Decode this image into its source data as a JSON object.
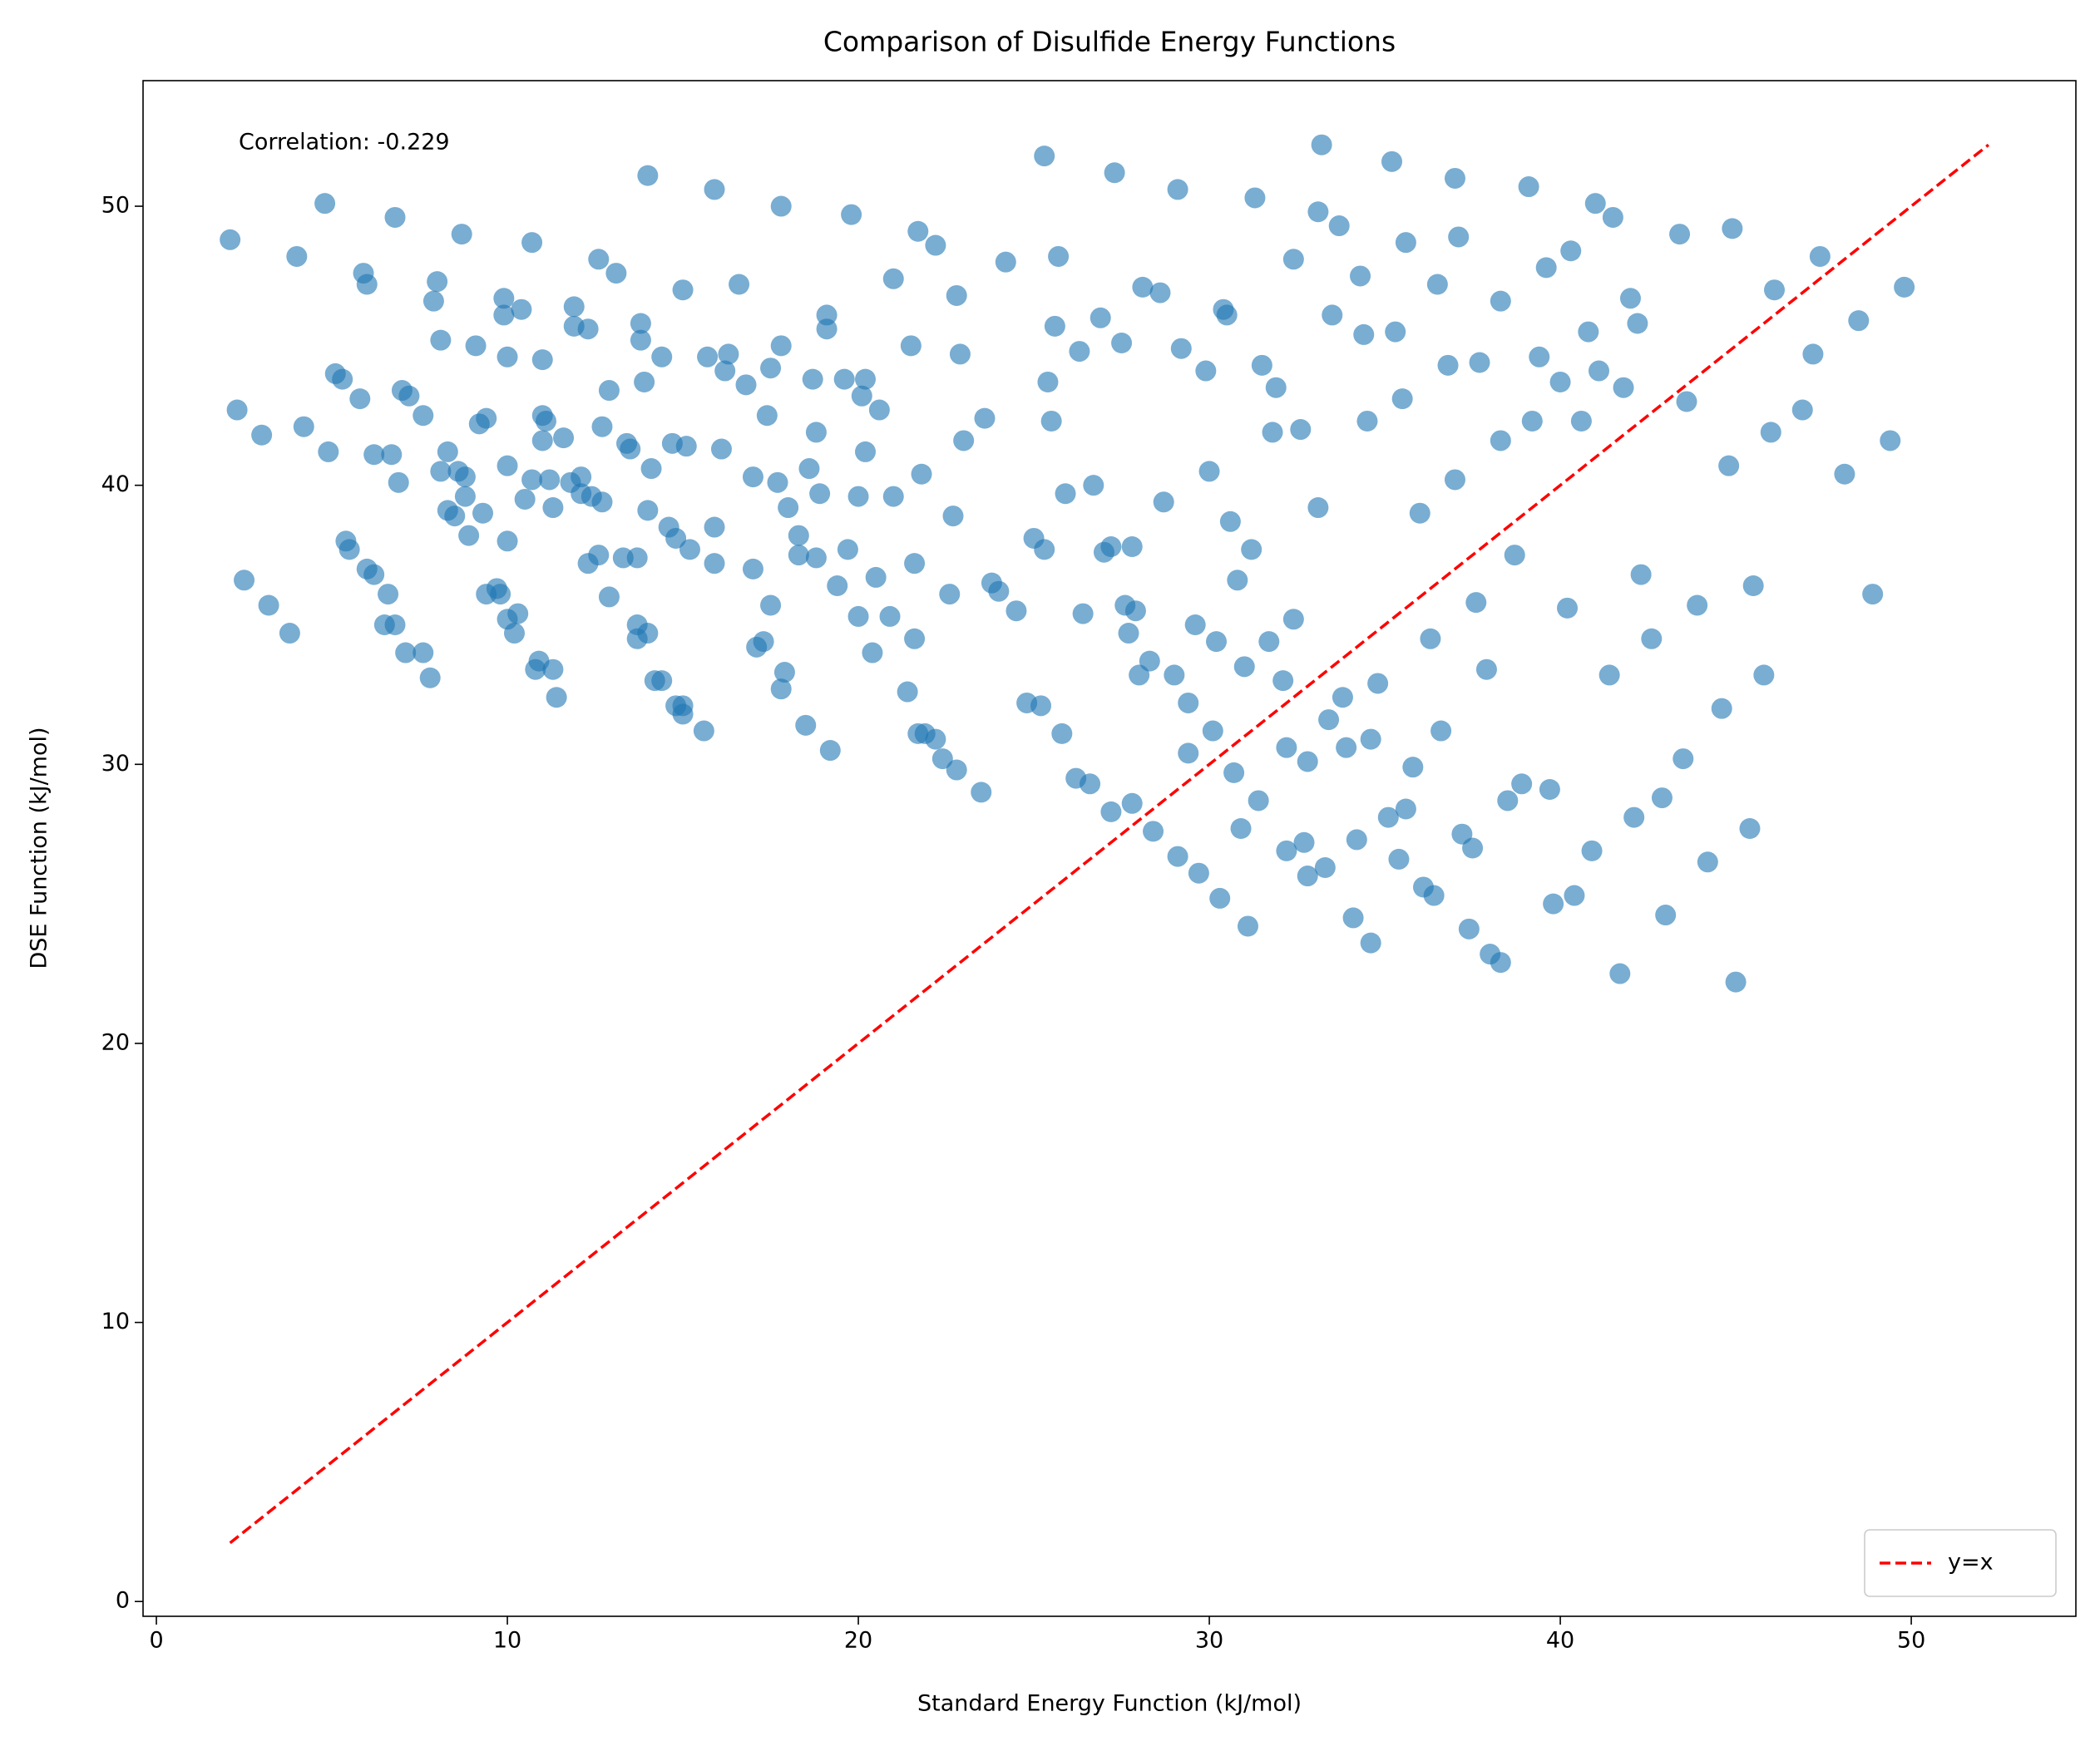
{
  "chart_data": {
    "type": "scatter",
    "title": "Comparison of Disulfide Energy Functions",
    "xlabel": "Standard Energy Function (kJ/mol)",
    "ylabel": "DSE Function (kJ/mol)",
    "annotation": "Correlation: -0.229",
    "color": "#1f77b4",
    "alpha": 0.6,
    "xlim": [
      -0.38,
      54.69
    ],
    "ylim": [
      -0.53,
      54.5
    ],
    "xticks": [
      0,
      10,
      20,
      30,
      40,
      50
    ],
    "yticks": [
      0,
      10,
      20,
      30,
      40,
      50
    ],
    "legend": "lower right",
    "series": [
      {
        "name": "y=x",
        "type": "line",
        "color": "red",
        "dashed": true,
        "x": [
          2.1,
          52.2
        ],
        "values": [
          2.1,
          52.2
        ]
      }
    ],
    "points": [
      [
        2.1,
        48.8
      ],
      [
        2.3,
        42.7
      ],
      [
        2.5,
        36.6
      ],
      [
        3,
        41.8
      ],
      [
        3.2,
        35.7
      ],
      [
        3.8,
        34.7
      ],
      [
        4,
        48.2
      ],
      [
        4.2,
        42.1
      ],
      [
        4.8,
        50.1
      ],
      [
        4.9,
        41.2
      ],
      [
        5.1,
        44
      ],
      [
        5.3,
        43.8
      ],
      [
        5.4,
        38
      ],
      [
        5.5,
        37.7
      ],
      [
        5.8,
        43.1
      ],
      [
        5.9,
        47.6
      ],
      [
        6,
        47.2
      ],
      [
        6,
        37
      ],
      [
        6.2,
        36.8
      ],
      [
        6.2,
        41.1
      ],
      [
        6.5,
        35
      ],
      [
        6.6,
        36.1
      ],
      [
        6.7,
        41.1
      ],
      [
        6.8,
        49.6
      ],
      [
        6.8,
        35
      ],
      [
        6.9,
        40.1
      ],
      [
        7,
        43.4
      ],
      [
        7.1,
        34
      ],
      [
        7.2,
        43.2
      ],
      [
        7.6,
        34
      ],
      [
        7.6,
        42.5
      ],
      [
        7.8,
        33.1
      ],
      [
        7.9,
        46.6
      ],
      [
        8,
        47.3
      ],
      [
        8.1,
        45.2
      ],
      [
        8.1,
        40.5
      ],
      [
        8.3,
        41.2
      ],
      [
        8.3,
        39.1
      ],
      [
        8.5,
        38.9
      ],
      [
        8.6,
        40.5
      ],
      [
        8.7,
        49
      ],
      [
        8.8,
        39.6
      ],
      [
        8.8,
        40.3
      ],
      [
        8.9,
        38.2
      ],
      [
        9.1,
        45
      ],
      [
        9.2,
        42.2
      ],
      [
        9.3,
        39
      ],
      [
        9.4,
        42.4
      ],
      [
        9.4,
        36.1
      ],
      [
        9.7,
        36.3
      ],
      [
        9.8,
        36.1
      ],
      [
        9.9,
        46.1
      ],
      [
        9.9,
        46.7
      ],
      [
        10,
        44.6
      ],
      [
        10,
        40.7
      ],
      [
        10,
        38
      ],
      [
        10,
        35.2
      ],
      [
        10.2,
        34.7
      ],
      [
        10.3,
        35.4
      ],
      [
        10.4,
        46.3
      ],
      [
        10.5,
        39.5
      ],
      [
        10.7,
        40.2
      ],
      [
        10.7,
        48.7
      ],
      [
        10.8,
        33.4
      ],
      [
        10.9,
        33.7
      ],
      [
        11,
        42.5
      ],
      [
        11,
        44.5
      ],
      [
        11,
        41.6
      ],
      [
        11.1,
        42.3
      ],
      [
        11.2,
        40.2
      ],
      [
        11.3,
        33.4
      ],
      [
        11.3,
        39.2
      ],
      [
        11.4,
        32.4
      ],
      [
        11.6,
        41.7
      ],
      [
        11.8,
        40.1
      ],
      [
        11.9,
        46.4
      ],
      [
        11.9,
        45.7
      ],
      [
        12.1,
        39.7
      ],
      [
        12.1,
        40.3
      ],
      [
        12.3,
        37.2
      ],
      [
        12.3,
        45.6
      ],
      [
        12.4,
        39.6
      ],
      [
        12.6,
        37.5
      ],
      [
        12.6,
        48.1
      ],
      [
        12.7,
        39.4
      ],
      [
        12.7,
        42.1
      ],
      [
        12.9,
        43.4
      ],
      [
        12.9,
        36
      ],
      [
        13.1,
        47.6
      ],
      [
        13.3,
        37.4
      ],
      [
        13.4,
        41.5
      ],
      [
        13.5,
        41.3
      ],
      [
        13.7,
        37.4
      ],
      [
        13.7,
        35
      ],
      [
        13.7,
        34.5
      ],
      [
        13.8,
        45.2
      ],
      [
        13.8,
        45.8
      ],
      [
        13.9,
        43.7
      ],
      [
        14,
        39.1
      ],
      [
        14,
        51.1
      ],
      [
        14,
        34.7
      ],
      [
        14.1,
        40.6
      ],
      [
        14.2,
        33
      ],
      [
        14.4,
        44.6
      ],
      [
        14.4,
        33
      ],
      [
        14.6,
        38.5
      ],
      [
        14.7,
        41.5
      ],
      [
        14.8,
        38.1
      ],
      [
        14.8,
        32.1
      ],
      [
        15,
        32.1
      ],
      [
        15,
        31.8
      ],
      [
        15,
        47
      ],
      [
        15.1,
        41.4
      ],
      [
        15.2,
        37.7
      ],
      [
        15.6,
        31.2
      ],
      [
        15.7,
        44.6
      ],
      [
        15.9,
        38.5
      ],
      [
        15.9,
        50.6
      ],
      [
        15.9,
        37.2
      ],
      [
        16.1,
        41.3
      ],
      [
        16.2,
        44.1
      ],
      [
        16.3,
        44.7
      ],
      [
        16.6,
        47.2
      ],
      [
        16.8,
        43.6
      ],
      [
        17,
        40.3
      ],
      [
        17,
        37
      ],
      [
        17.1,
        34.2
      ],
      [
        17.3,
        34.4
      ],
      [
        17.4,
        42.5
      ],
      [
        17.5,
        44.2
      ],
      [
        17.5,
        35.7
      ],
      [
        17.7,
        40.1
      ],
      [
        17.8,
        45
      ],
      [
        17.8,
        50
      ],
      [
        17.8,
        32.7
      ],
      [
        17.9,
        33.3
      ],
      [
        18,
        39.2
      ],
      [
        18.3,
        38.2
      ],
      [
        18.3,
        37.5
      ],
      [
        18.5,
        31.4
      ],
      [
        18.6,
        40.6
      ],
      [
        18.7,
        43.8
      ],
      [
        18.8,
        41.9
      ],
      [
        18.8,
        37.4
      ],
      [
        18.9,
        39.7
      ],
      [
        19.1,
        45.6
      ],
      [
        19.1,
        46.1
      ],
      [
        19.2,
        30.5
      ],
      [
        19.4,
        36.4
      ],
      [
        19.6,
        43.8
      ],
      [
        19.7,
        37.7
      ],
      [
        19.8,
        49.7
      ],
      [
        20,
        39.6
      ],
      [
        20,
        35.3
      ],
      [
        20.1,
        43.2
      ],
      [
        20.2,
        43.8
      ],
      [
        20.2,
        41.2
      ],
      [
        20.4,
        34
      ],
      [
        20.5,
        36.7
      ],
      [
        20.6,
        42.7
      ],
      [
        20.9,
        35.3
      ],
      [
        21,
        39.6
      ],
      [
        21,
        47.4
      ],
      [
        21.4,
        32.6
      ],
      [
        21.5,
        45
      ],
      [
        21.6,
        37.2
      ],
      [
        21.6,
        34.5
      ],
      [
        21.7,
        31.1
      ],
      [
        21.7,
        49.1
      ],
      [
        21.8,
        40.4
      ],
      [
        21.9,
        31.1
      ],
      [
        22.2,
        30.9
      ],
      [
        22.2,
        48.6
      ],
      [
        22.4,
        30.2
      ],
      [
        22.6,
        36.1
      ],
      [
        22.7,
        38.9
      ],
      [
        22.8,
        46.8
      ],
      [
        22.9,
        44.7
      ],
      [
        22.8,
        29.8
      ],
      [
        23,
        41.6
      ],
      [
        23.5,
        29
      ],
      [
        23.6,
        42.4
      ],
      [
        23.8,
        36.5
      ],
      [
        24,
        36.2
      ],
      [
        24.2,
        48
      ],
      [
        24.5,
        35.5
      ],
      [
        24.8,
        32.2
      ],
      [
        25,
        38.1
      ],
      [
        25.2,
        32.1
      ],
      [
        25.3,
        37.7
      ],
      [
        25.3,
        51.8
      ],
      [
        25.4,
        43.7
      ],
      [
        25.5,
        42.3
      ],
      [
        25.6,
        45.7
      ],
      [
        25.7,
        48.2
      ],
      [
        25.8,
        31.1
      ],
      [
        25.9,
        39.7
      ],
      [
        26.2,
        29.5
      ],
      [
        26.3,
        44.8
      ],
      [
        26.4,
        35.4
      ],
      [
        26.6,
        29.3
      ],
      [
        26.7,
        40
      ],
      [
        26.9,
        46
      ],
      [
        27,
        37.6
      ],
      [
        27.2,
        28.3
      ],
      [
        27.2,
        37.8
      ],
      [
        27.3,
        51.2
      ],
      [
        27.5,
        45.1
      ],
      [
        27.6,
        35.7
      ],
      [
        27.7,
        34.7
      ],
      [
        27.8,
        37.8
      ],
      [
        27.8,
        28.6
      ],
      [
        27.9,
        35.5
      ],
      [
        28,
        33.2
      ],
      [
        28.1,
        47.1
      ],
      [
        28.3,
        33.7
      ],
      [
        28.4,
        27.6
      ],
      [
        28.6,
        46.9
      ],
      [
        28.7,
        39.4
      ],
      [
        29,
        33.2
      ],
      [
        29.1,
        26.7
      ],
      [
        29.1,
        50.6
      ],
      [
        29.2,
        44.9
      ],
      [
        29.4,
        32.2
      ],
      [
        29.4,
        30.4
      ],
      [
        29.6,
        35
      ],
      [
        29.7,
        26.1
      ],
      [
        29.9,
        44.1
      ],
      [
        30,
        40.5
      ],
      [
        30.1,
        31.2
      ],
      [
        30.2,
        34.4
      ],
      [
        30.3,
        25.2
      ],
      [
        30.4,
        46.3
      ],
      [
        30.5,
        46.1
      ],
      [
        30.6,
        38.7
      ],
      [
        30.7,
        29.7
      ],
      [
        30.8,
        36.6
      ],
      [
        30.9,
        27.7
      ],
      [
        31,
        33.5
      ],
      [
        31.1,
        24.2
      ],
      [
        31.2,
        37.7
      ],
      [
        31.3,
        50.3
      ],
      [
        31.4,
        28.7
      ],
      [
        31.5,
        44.3
      ],
      [
        31.7,
        34.4
      ],
      [
        31.8,
        41.9
      ],
      [
        31.9,
        43.5
      ],
      [
        32.1,
        33
      ],
      [
        32.2,
        30.6
      ],
      [
        32.2,
        26.9
      ],
      [
        32.4,
        48.1
      ],
      [
        32.4,
        35.2
      ],
      [
        32.6,
        42
      ],
      [
        32.7,
        27.2
      ],
      [
        32.8,
        26
      ],
      [
        32.8,
        30.1
      ],
      [
        33.1,
        39.2
      ],
      [
        33.1,
        49.8
      ],
      [
        33.2,
        52.2
      ],
      [
        33.3,
        26.3
      ],
      [
        33.4,
        31.6
      ],
      [
        33.5,
        46.1
      ],
      [
        33.7,
        49.3
      ],
      [
        33.8,
        32.4
      ],
      [
        33.9,
        30.6
      ],
      [
        34.1,
        24.5
      ],
      [
        34.2,
        27.3
      ],
      [
        34.3,
        47.5
      ],
      [
        34.4,
        45.4
      ],
      [
        34.5,
        42.3
      ],
      [
        34.6,
        23.6
      ],
      [
        34.6,
        30.9
      ],
      [
        34.8,
        32.9
      ],
      [
        35.1,
        28.1
      ],
      [
        35.2,
        51.6
      ],
      [
        35.3,
        45.5
      ],
      [
        35.4,
        26.6
      ],
      [
        35.5,
        43.1
      ],
      [
        35.6,
        48.7
      ],
      [
        35.6,
        28.4
      ],
      [
        35.8,
        29.9
      ],
      [
        36,
        39
      ],
      [
        36.1,
        25.6
      ],
      [
        36.3,
        34.5
      ],
      [
        36.4,
        25.3
      ],
      [
        36.5,
        47.2
      ],
      [
        36.6,
        31.2
      ],
      [
        36.8,
        44.3
      ],
      [
        37,
        51
      ],
      [
        37,
        40.2
      ],
      [
        37.1,
        48.9
      ],
      [
        37.2,
        27.5
      ],
      [
        37.4,
        24.1
      ],
      [
        37.5,
        27
      ],
      [
        37.6,
        35.8
      ],
      [
        37.7,
        44.4
      ],
      [
        37.9,
        33.4
      ],
      [
        38,
        23.2
      ],
      [
        38.3,
        22.9
      ],
      [
        38.3,
        46.6
      ],
      [
        38.3,
        41.6
      ],
      [
        38.5,
        28.7
      ],
      [
        38.7,
        37.5
      ],
      [
        38.9,
        29.3
      ],
      [
        39.1,
        50.7
      ],
      [
        39.2,
        42.3
      ],
      [
        39.4,
        44.6
      ],
      [
        39.6,
        47.8
      ],
      [
        39.7,
        29.1
      ],
      [
        39.8,
        25
      ],
      [
        40,
        43.7
      ],
      [
        40.2,
        35.6
      ],
      [
        40.3,
        48.4
      ],
      [
        40.4,
        25.3
      ],
      [
        40.6,
        42.3
      ],
      [
        40.8,
        45.5
      ],
      [
        40.9,
        26.9
      ],
      [
        41,
        50.1
      ],
      [
        41.1,
        44.1
      ],
      [
        41.4,
        33.2
      ],
      [
        41.5,
        49.6
      ],
      [
        41.7,
        22.5
      ],
      [
        41.8,
        43.5
      ],
      [
        42,
        46.7
      ],
      [
        42.1,
        28.1
      ],
      [
        42.2,
        45.8
      ],
      [
        42.3,
        36.8
      ],
      [
        42.6,
        34.5
      ],
      [
        42.9,
        28.8
      ],
      [
        43,
        24.6
      ],
      [
        43.4,
        49
      ],
      [
        43.5,
        30.2
      ],
      [
        43.6,
        43
      ],
      [
        43.9,
        35.7
      ],
      [
        44.2,
        26.5
      ],
      [
        44.6,
        32
      ],
      [
        44.8,
        40.7
      ],
      [
        44.9,
        49.2
      ],
      [
        45,
        22.2
      ],
      [
        45.4,
        27.7
      ],
      [
        45.5,
        36.4
      ],
      [
        45.8,
        33.2
      ],
      [
        46,
        41.9
      ],
      [
        46.1,
        47
      ],
      [
        46.9,
        42.7
      ],
      [
        47.2,
        44.7
      ],
      [
        47.4,
        48.2
      ],
      [
        48.1,
        40.4
      ],
      [
        48.5,
        45.9
      ],
      [
        48.9,
        36.1
      ],
      [
        49.4,
        41.6
      ],
      [
        49.8,
        47.1
      ]
    ]
  }
}
